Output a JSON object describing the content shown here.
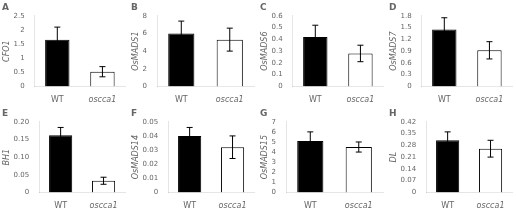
{
  "chart_data": [
    {
      "type": "bar",
      "title": "A",
      "ylabel": "CFO1",
      "categories": [
        "WT",
        "oscca1"
      ],
      "values": [
        1.65,
        0.52
      ],
      "errors": [
        0.45,
        0.18
      ],
      "colors": [
        "black",
        "white"
      ],
      "ylim": [
        0,
        2.5
      ],
      "yticks": [
        0,
        0.5,
        1,
        1.5,
        2,
        2.5
      ],
      "grid": false,
      "legend": "none"
    },
    {
      "type": "bar",
      "title": "B",
      "ylabel": "OsMADS1",
      "categories": [
        "WT",
        "oscca1"
      ],
      "values": [
        6.0,
        5.3
      ],
      "errors": [
        1.4,
        1.3
      ],
      "colors": [
        "black",
        "white"
      ],
      "ylim": [
        0,
        8
      ],
      "yticks": [
        0,
        2,
        4,
        6,
        8
      ],
      "grid": false,
      "legend": "none"
    },
    {
      "type": "bar",
      "title": "C",
      "ylabel": "OsMADS6",
      "categories": [
        "WT",
        "oscca1"
      ],
      "values": [
        0.42,
        0.28
      ],
      "errors": [
        0.1,
        0.07
      ],
      "colors": [
        "black",
        "white"
      ],
      "ylim": [
        0,
        0.6
      ],
      "yticks": [
        0,
        0.1,
        0.2,
        0.3,
        0.4,
        0.5,
        0.6
      ],
      "grid": false,
      "legend": "none"
    },
    {
      "type": "bar",
      "title": "D",
      "ylabel": "OsMADS7",
      "categories": [
        "WT",
        "oscca1"
      ],
      "values": [
        1.45,
        0.92
      ],
      "errors": [
        0.3,
        0.22
      ],
      "colors": [
        "black",
        "white"
      ],
      "ylim": [
        0,
        1.8
      ],
      "yticks": [
        0,
        0.3,
        0.6,
        0.9,
        1.2,
        1.5,
        1.8
      ],
      "grid": false,
      "legend": "none"
    },
    {
      "type": "bar",
      "title": "E",
      "ylabel": "BH1",
      "categories": [
        "WT",
        "oscca1"
      ],
      "values": [
        0.162,
        0.033
      ],
      "errors": [
        0.022,
        0.01
      ],
      "colors": [
        "black",
        "white"
      ],
      "ylim": [
        0,
        0.2
      ],
      "yticks": [
        0,
        0.05,
        {
          "value": 0.1,
          "label": "0.10"
        },
        0.15,
        {
          "value": 0.2,
          "label": "0.20"
        }
      ],
      "grid": false,
      "legend": "none"
    },
    {
      "type": "bar",
      "title": "F",
      "ylabel": "OsMADS14",
      "categories": [
        "WT",
        "oscca1"
      ],
      "values": [
        0.04,
        0.032
      ],
      "errors": [
        0.006,
        0.008
      ],
      "colors": [
        "black",
        "white"
      ],
      "ylim": [
        0,
        0.05
      ],
      "yticks": [
        0,
        0.01,
        0.02,
        0.03,
        0.04,
        0.05
      ],
      "grid": false,
      "legend": "none"
    },
    {
      "type": "bar",
      "title": "G",
      "ylabel": "OsMADS15",
      "categories": [
        "WT",
        "oscca1"
      ],
      "values": [
        5.1,
        4.5
      ],
      "errors": [
        0.9,
        0.5
      ],
      "colors": [
        "black",
        "white"
      ],
      "ylim": [
        0,
        7
      ],
      "yticks": [
        0,
        1,
        2,
        3,
        4,
        5,
        6,
        7
      ],
      "grid": false,
      "legend": "none"
    },
    {
      "type": "bar",
      "title": "H",
      "ylabel": "DL",
      "categories": [
        "WT",
        "oscca1"
      ],
      "values": [
        0.31,
        0.26
      ],
      "errors": [
        0.05,
        0.05
      ],
      "colors": [
        "black",
        "white"
      ],
      "ylim": [
        0,
        0.42
      ],
      "yticks": [
        0,
        0.07,
        0.14,
        0.21,
        0.28,
        0.35,
        0.42
      ],
      "grid": false,
      "legend": "none"
    }
  ]
}
